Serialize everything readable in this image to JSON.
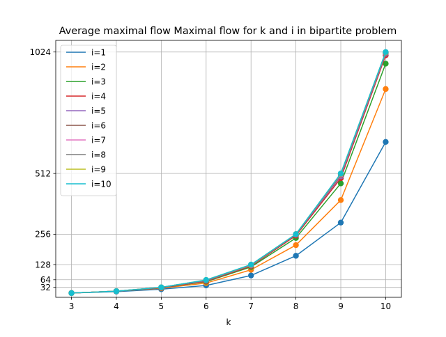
{
  "chart_data": {
    "type": "line",
    "title": "Average maximal flow Maximal flow for k and i in bipartite problem",
    "xlabel": "k",
    "ylabel": "",
    "x": [
      3,
      4,
      5,
      6,
      7,
      8,
      9,
      10
    ],
    "xticks": [
      "3",
      "4",
      "5",
      "6",
      "7",
      "8",
      "9",
      "10"
    ],
    "yticks": [
      32,
      64,
      128,
      256,
      512,
      1024
    ],
    "xlim": [
      2.65,
      10.35
    ],
    "ylim": [
      -10,
      1073
    ],
    "grid": true,
    "markers": true,
    "legend_position": "upper left",
    "series": [
      {
        "name": "i=1",
        "color": "#1f77b4",
        "values": [
          8,
          14,
          24,
          40,
          82,
          165,
          305,
          645
        ]
      },
      {
        "name": "i=2",
        "color": "#ff7f0e",
        "values": [
          8,
          16,
          28,
          50,
          106,
          210,
          400,
          868
        ]
      },
      {
        "name": "i=3",
        "color": "#2ca02c",
        "values": [
          8,
          16,
          30,
          56,
          118,
          240,
          470,
          975
        ]
      },
      {
        "name": "i=4",
        "color": "#d62728",
        "values": [
          8,
          16,
          30,
          58,
          122,
          250,
          492,
          1010
        ]
      },
      {
        "name": "i=5",
        "color": "#9467bd",
        "values": [
          8,
          16,
          31,
          60,
          124,
          254,
          500,
          1016
        ]
      },
      {
        "name": "i=6",
        "color": "#8c564b",
        "values": [
          8,
          16,
          31,
          61,
          125,
          255,
          505,
          1019
        ]
      },
      {
        "name": "i=7",
        "color": "#e377c2",
        "values": [
          8,
          16,
          32,
          62,
          126,
          256,
          508,
          1021
        ]
      },
      {
        "name": "i=8",
        "color": "#7f7f7f",
        "values": [
          8,
          16,
          32,
          62,
          127,
          256,
          510,
          1022
        ]
      },
      {
        "name": "i=9",
        "color": "#bcbd22",
        "values": [
          8,
          16,
          32,
          63,
          127,
          256,
          511,
          1023
        ]
      },
      {
        "name": "i=10",
        "color": "#17becf",
        "values": [
          8,
          16,
          32,
          63,
          128,
          256,
          512,
          1024
        ]
      }
    ]
  }
}
